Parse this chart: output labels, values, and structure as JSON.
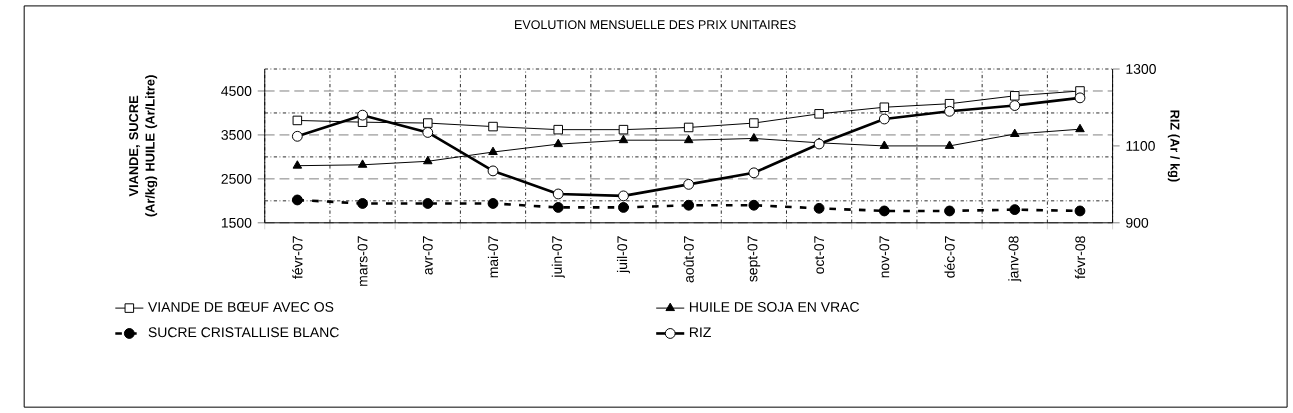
{
  "chart_data": {
    "type": "line",
    "title": "EVOLUTION MENSUELLE DES PRIX UNITAIRES",
    "categories": [
      "févr-07",
      "mars-07",
      "avr-07",
      "mai-07",
      "juin-07",
      "juil-07",
      "août-07",
      "sept-07",
      "oct-07",
      "nov-07",
      "déc-07",
      "janv-08",
      "févr-08"
    ],
    "ylabel": "VIANDE, SUCRE (Ar/kg) HUILE (Ar/Litre)",
    "y2label": "RIZ (Ar / kg)",
    "ylim": [
      1500,
      5000
    ],
    "yticks": [
      1500,
      2500,
      3500,
      4500
    ],
    "y2lim": [
      900,
      1300
    ],
    "y2ticks": [
      900,
      1100,
      1300
    ],
    "grid": true,
    "legend": "bottom",
    "series": [
      {
        "name": "VIANDE DE BŒUF AVEC OS",
        "color": "#000000",
        "marker": "square",
        "line_style": "solid",
        "values": [
          3830,
          3790,
          3770,
          3690,
          3620,
          3620,
          3670,
          3770,
          3980,
          4130,
          4210,
          4390,
          4500
        ]
      },
      {
        "name": "HUILE DE SOJA EN VRAC",
        "color": "#000000",
        "marker": "triangle",
        "line_style": "solid",
        "values": [
          2800,
          2820,
          2900,
          3110,
          3290,
          3380,
          3380,
          3420,
          3320,
          3250,
          3250,
          3520,
          3630
        ]
      },
      {
        "name": "SUCRE CRISTALLISE BLANC",
        "color": "#000000",
        "marker": "circle",
        "line_style": "dashed",
        "values": [
          2020,
          1940,
          1940,
          1940,
          1850,
          1850,
          1900,
          1900,
          1830,
          1770,
          1770,
          1800,
          1770
        ]
      },
      {
        "name": "RIZ",
        "color": "#000000",
        "marker": "circle",
        "line_style": "solid",
        "axis": "y2",
        "values": [
          1125,
          1180,
          1135,
          1035,
          975,
          970,
          1000,
          1030,
          1105,
          1170,
          1190,
          1205,
          1225
        ]
      }
    ]
  }
}
